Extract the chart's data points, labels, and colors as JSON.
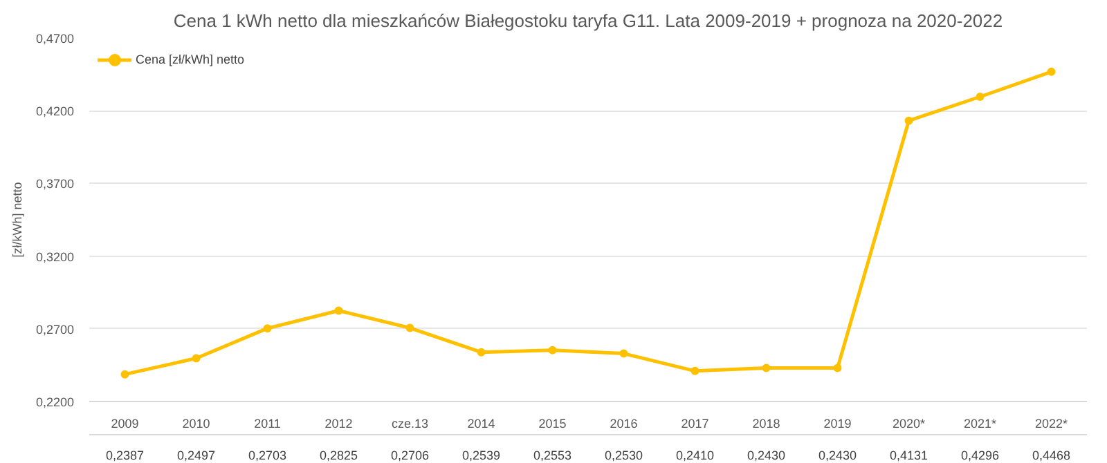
{
  "chart_data": {
    "type": "line",
    "title": "Cena 1 kWh netto dla mieszkańców Białegostoku taryfa G11. Lata 2009-2019 + prognoza na 2020-2022",
    "ylabel": "[zł/kWh] netto",
    "categories": [
      "2009",
      "2010",
      "2011",
      "2012",
      "cze.13",
      "2014",
      "2015",
      "2016",
      "2017",
      "2018",
      "2019",
      "2020*",
      "2021*",
      "2022*"
    ],
    "series": [
      {
        "name": "Cena [zł/kWh] netto",
        "color": "#ffc000",
        "values": [
          0.2387,
          0.2497,
          0.2703,
          0.2825,
          0.2706,
          0.2539,
          0.2553,
          0.253,
          0.241,
          0.243,
          0.243,
          0.4131,
          0.4296,
          0.4468
        ],
        "value_labels": [
          "0,2387",
          "0,2497",
          "0,2703",
          "0,2825",
          "0,2706",
          "0,2539",
          "0,2553",
          "0,2530",
          "0,2410",
          "0,2430",
          "0,2430",
          "0,4131",
          "0,4296",
          "0,4468"
        ]
      }
    ],
    "ylim": [
      0.22,
      0.47
    ],
    "yticks": [
      {
        "value": 0.22,
        "label": "0,2200"
      },
      {
        "value": 0.27,
        "label": "0,2700"
      },
      {
        "value": 0.32,
        "label": "0,3200"
      },
      {
        "value": 0.37,
        "label": "0,3700"
      },
      {
        "value": 0.42,
        "label": "0,4200"
      },
      {
        "value": 0.47,
        "label": "0,4700"
      }
    ],
    "grid": "y",
    "legend": "top left",
    "marker": "circle",
    "line_style": "solid"
  }
}
